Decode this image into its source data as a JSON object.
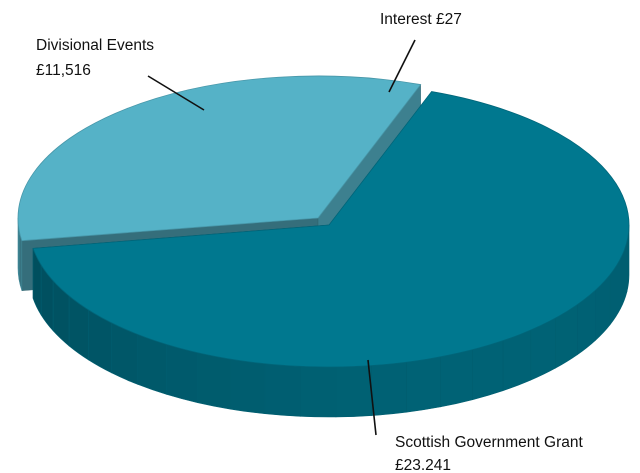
{
  "chart_data": {
    "type": "pie",
    "style": "3d-exploded",
    "slices": [
      {
        "name": "Scottish Government Grant",
        "value": 23241,
        "value_label": "£23.241",
        "color": "#00788f"
      },
      {
        "name": "Interest",
        "value": 27,
        "value_label": "£27",
        "color": "#9ab7c4"
      },
      {
        "name": "Divisional Events",
        "value": 11516,
        "value_label": "£11,516",
        "color": "#55b2c7"
      }
    ],
    "labels": {
      "divisional": {
        "line1": "Divisional Events",
        "line2": "£11,516"
      },
      "interest": {
        "line1": "Interest £27"
      },
      "grant": {
        "line1": "Scottish Government Grant",
        "line2": "£23.241"
      }
    },
    "legend": "none",
    "title": ""
  }
}
